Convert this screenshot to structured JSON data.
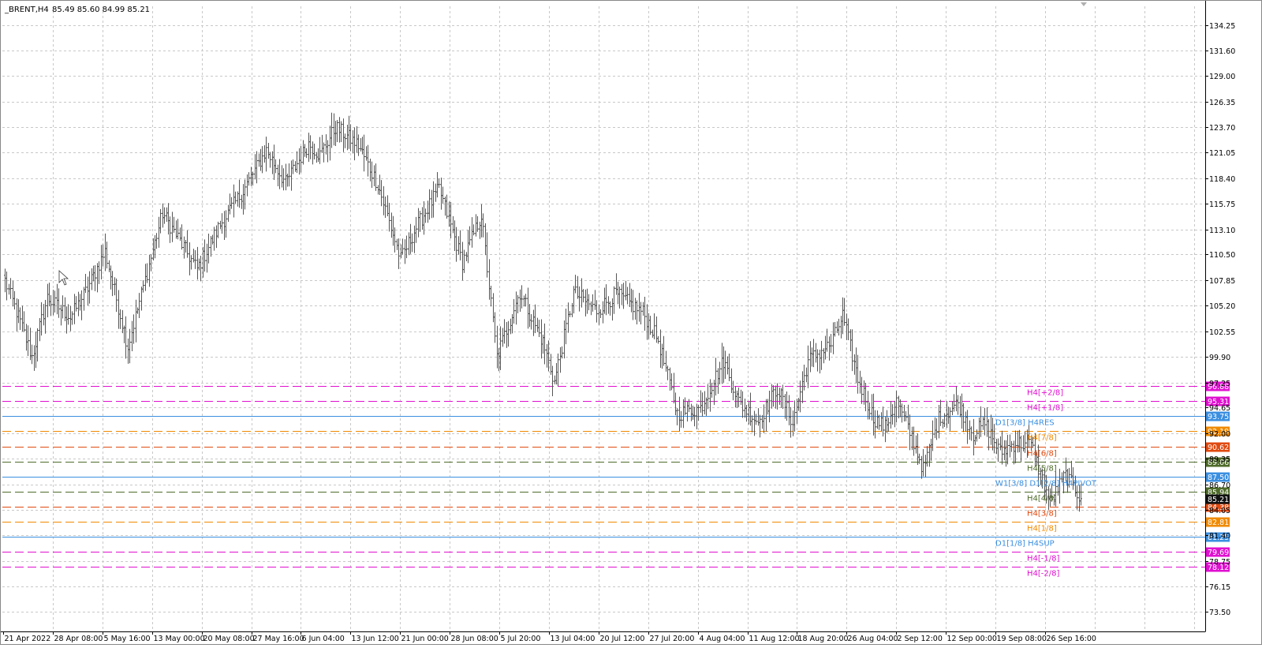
{
  "header": {
    "symbol": "_BRENT,H4",
    "ohlc": "85.49 85.60 84.99 85.21"
  },
  "colors": {
    "background": "#ffffff",
    "grid": "#c8c8c8",
    "candle": "#555555",
    "magenta": "#e010d0",
    "blue": "#3b8fe0",
    "orange": "#f08a00",
    "red_orange": "#e04a10",
    "olive": "#4f6b2a",
    "crimson": "#b0102a",
    "current_price": "#111111"
  },
  "chart_data": {
    "type": "candlestick",
    "symbol": "_BRENT",
    "timeframe": "H4",
    "ylim": [
      73.5,
      135.4
    ],
    "grid": true,
    "y_ticks": [
      "134.25",
      "131.60",
      "129.00",
      "126.35",
      "123.70",
      "121.05",
      "118.40",
      "115.75",
      "113.10",
      "110.50",
      "107.85",
      "105.20",
      "102.55",
      "99.90",
      "97.25",
      "94.65",
      "92.00",
      "89.35",
      "86.70",
      "84.05",
      "81.40",
      "78.75",
      "76.15",
      "73.50"
    ],
    "x_ticks": [
      "21 Apr 2022",
      "28 Apr 08:00",
      "5 May 16:00",
      "13 May 00:00",
      "20 May 08:00",
      "27 May 16:00",
      "6 Jun 04:00",
      "13 Jun 12:00",
      "21 Jun 00:00",
      "28 Jun 08:00",
      "5 Jul 20:00",
      "13 Jul 04:00",
      "20 Jul 12:00",
      "27 Jul 20:00",
      "4 Aug 04:00",
      "11 Aug 12:00",
      "18 Aug 20:00",
      "26 Aug 04:00",
      "2 Sep 12:00",
      "12 Sep 00:00",
      "19 Sep 08:00",
      "26 Sep 16:00"
    ],
    "series": {
      "anchors": [
        [
          0,
          107.8
        ],
        [
          8,
          103.5
        ],
        [
          14,
          99.9
        ],
        [
          22,
          106.0
        ],
        [
          34,
          104.0
        ],
        [
          42,
          106.6
        ],
        [
          52,
          110.8
        ],
        [
          64,
          101.0
        ],
        [
          82,
          114.8
        ],
        [
          100,
          109.0
        ],
        [
          112,
          113.6
        ],
        [
          124,
          117.1
        ],
        [
          136,
          121.3
        ],
        [
          146,
          117.9
        ],
        [
          158,
          122.0
        ],
        [
          164,
          120.8
        ],
        [
          172,
          123.7
        ],
        [
          184,
          121.8
        ],
        [
          194,
          117.8
        ],
        [
          206,
          110.0
        ],
        [
          214,
          113.3
        ],
        [
          226,
          117.3
        ],
        [
          238,
          109.7
        ],
        [
          248,
          114.6
        ],
        [
          256,
          99.9
        ],
        [
          268,
          106.6
        ],
        [
          280,
          101.4
        ],
        [
          286,
          97.3
        ],
        [
          296,
          106.6
        ],
        [
          308,
          104.7
        ],
        [
          318,
          106.4
        ],
        [
          332,
          104.5
        ],
        [
          340,
          101.6
        ],
        [
          350,
          94.0
        ],
        [
          362,
          94.6
        ],
        [
          374,
          99.5
        ],
        [
          382,
          95.2
        ],
        [
          392,
          93.2
        ],
        [
          402,
          96.7
        ],
        [
          410,
          93.1
        ],
        [
          418,
          99.5
        ],
        [
          430,
          101.2
        ],
        [
          436,
          104.2
        ],
        [
          444,
          97.6
        ],
        [
          452,
          93.6
        ],
        [
          458,
          92.6
        ],
        [
          464,
          95.3
        ],
        [
          472,
          91.6
        ],
        [
          478,
          88.2
        ],
        [
          486,
          93.5
        ],
        [
          496,
          95.1
        ],
        [
          504,
          91.9
        ],
        [
          510,
          93.0
        ],
        [
          518,
          90.0
        ],
        [
          526,
          91.0
        ],
        [
          534,
          90.8
        ],
        [
          544,
          84.8
        ],
        [
          552,
          87.7
        ],
        [
          560,
          85.21
        ]
      ],
      "last_close": 85.21
    },
    "levels": [
      {
        "label": "H4[+2/8]",
        "value": "96.88",
        "price": 96.88,
        "color": "#e010d0",
        "style": "dash",
        "label_offset": 8
      },
      {
        "label": "H4[+1/8]",
        "value": "95.31",
        "price": 95.31,
        "color": "#e010d0",
        "style": "dash",
        "label_offset": 8
      },
      {
        "label": "D1[3/8] H4RES",
        "value": "93.75",
        "price": 93.75,
        "color": "#3b8fe0",
        "style": "solid",
        "label_offset": 8
      },
      {
        "label": "H4[7/8]",
        "value": "92.19",
        "price": 92.19,
        "color": "#f08a00",
        "style": "dash",
        "label_offset": 8
      },
      {
        "label": "H4[6/8]",
        "value": "90.62",
        "price": 90.62,
        "color": "#e04a10",
        "style": "dash",
        "label_offset": 8
      },
      {
        "label": "H4[5/8]",
        "value": "89.06",
        "price": 89.06,
        "color": "#4f6b2a",
        "style": "dash",
        "label_offset": 8
      },
      {
        "label": "W1[3/8] D1[2/8] H4PIVOT",
        "value": "87.50",
        "price": 87.5,
        "color": "#3b8fe0",
        "style": "solid",
        "label_offset": 8
      },
      {
        "label": "H4[4/8]",
        "value": "85.94",
        "price": 85.94,
        "color": "#4f6b2a",
        "style": "dash",
        "label_offset": 8
      },
      {
        "label": "H4[3/8]",
        "value": "84.38",
        "price": 84.38,
        "color": "#e04a10",
        "style": "dash",
        "label_offset": 8
      },
      {
        "label": "H4[1/8]",
        "value": "82.81",
        "price": 82.81,
        "color": "#f08a00",
        "style": "dash",
        "label_offset": 8
      },
      {
        "label": "D1[1/8] H4SUP",
        "value": "81.25",
        "price": 81.25,
        "color": "#3b8fe0",
        "style": "solid",
        "label_offset": 8
      },
      {
        "label": "H4[-1/8]",
        "value": "79.69",
        "price": 79.69,
        "color": "#e010d0",
        "style": "dash",
        "label_offset": 8
      },
      {
        "label": "H4[-2/8]",
        "value": "78.12",
        "price": 78.12,
        "color": "#e010d0",
        "style": "dash",
        "label_offset": 8
      }
    ],
    "current_price_label": "85.21"
  }
}
